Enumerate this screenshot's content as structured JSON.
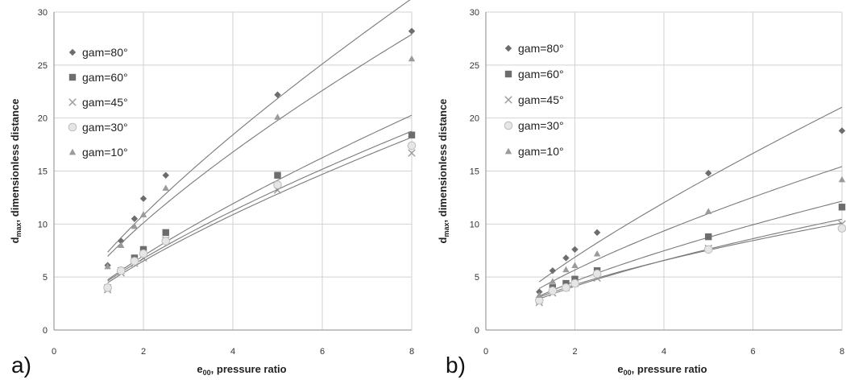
{
  "chart_data": [
    {
      "type": "scatter",
      "panel_label": "a)",
      "xlabel": {
        "main": "e",
        "sub": "00",
        "rest": ", pressure ratio"
      },
      "ylabel": {
        "main": "d",
        "sub": "max",
        "rest": ", dimensionless distance"
      },
      "xlim": [
        0,
        8
      ],
      "ylim": [
        0,
        30
      ],
      "xticks": [
        0,
        2,
        4,
        6,
        8
      ],
      "yticks": [
        0,
        5,
        10,
        15,
        20,
        25,
        30
      ],
      "grid": true,
      "legend_position": "top-left",
      "trendlines": "power fit per series",
      "series": [
        {
          "name": "gam=80°",
          "marker": "diamond",
          "color": "#6d6d6d",
          "x": [
            1.2,
            1.5,
            1.8,
            2,
            2.5,
            5,
            8
          ],
          "y": [
            6.1,
            8.4,
            10.5,
            12.4,
            14.6,
            22.2,
            28.2
          ]
        },
        {
          "name": "gam=60°",
          "marker": "square",
          "color": "#6d6d6d",
          "x": [
            1.2,
            1.5,
            1.8,
            2,
            2.5,
            5,
            8
          ],
          "y": [
            4.0,
            5.6,
            6.8,
            7.6,
            9.2,
            14.6,
            18.4
          ]
        },
        {
          "name": "gam=45°",
          "marker": "x",
          "color": "#9a9a9a",
          "x": [
            1.2,
            1.5,
            1.8,
            2,
            2.5,
            5,
            8
          ],
          "y": [
            3.8,
            5.4,
            6.3,
            6.8,
            8.5,
            13.2,
            16.7
          ]
        },
        {
          "name": "gam=30°",
          "marker": "circle",
          "color": "#bdbdbd",
          "x": [
            1.2,
            1.5,
            1.8,
            2,
            2.5,
            5,
            8
          ],
          "y": [
            4.0,
            5.6,
            6.5,
            7.2,
            8.4,
            13.7,
            17.4
          ]
        },
        {
          "name": "gam=10°",
          "marker": "triangle",
          "color": "#9a9a9a",
          "x": [
            1.2,
            1.5,
            1.8,
            2,
            2.5,
            5,
            8
          ],
          "y": [
            6.0,
            8.0,
            9.8,
            10.9,
            13.4,
            20.1,
            25.6
          ]
        }
      ]
    },
    {
      "type": "scatter",
      "panel_label": "b)",
      "xlabel": {
        "main": "e",
        "sub": "00",
        "rest": ", pressure ratio"
      },
      "ylabel": {
        "main": "d",
        "sub": "max",
        "rest": ", dimensionless distance"
      },
      "xlim": [
        0,
        8
      ],
      "ylim": [
        0,
        30
      ],
      "xticks": [
        0,
        2,
        4,
        6,
        8
      ],
      "yticks": [
        0,
        5,
        10,
        15,
        20,
        25,
        30
      ],
      "grid": true,
      "legend_position": "top-left",
      "trendlines": "power fit per series",
      "series": [
        {
          "name": "gam=80°",
          "marker": "diamond",
          "color": "#6d6d6d",
          "x": [
            1.2,
            1.5,
            1.8,
            2,
            2.5,
            5,
            8
          ],
          "y": [
            3.6,
            5.6,
            6.8,
            7.6,
            9.2,
            14.8,
            18.8
          ]
        },
        {
          "name": "gam=60°",
          "marker": "square",
          "color": "#6d6d6d",
          "x": [
            1.2,
            1.5,
            1.8,
            2,
            2.5,
            5,
            8
          ],
          "y": [
            2.8,
            4.0,
            4.4,
            4.8,
            5.6,
            8.8,
            11.6
          ]
        },
        {
          "name": "gam=45°",
          "marker": "x",
          "color": "#9a9a9a",
          "x": [
            1.2,
            1.5,
            1.8,
            2,
            2.5,
            5,
            8
          ],
          "y": [
            2.6,
            3.5,
            4.0,
            4.4,
            4.9,
            7.7,
            10.0
          ]
        },
        {
          "name": "gam=30°",
          "marker": "circle",
          "color": "#bdbdbd",
          "x": [
            1.2,
            1.5,
            1.8,
            2,
            2.5,
            5,
            8
          ],
          "y": [
            2.8,
            3.7,
            4.0,
            4.4,
            5.3,
            7.6,
            9.6
          ]
        },
        {
          "name": "gam=10°",
          "marker": "triangle",
          "color": "#9a9a9a",
          "x": [
            1.2,
            1.5,
            1.8,
            2,
            2.5,
            5,
            8
          ],
          "y": [
            3.3,
            4.6,
            5.7,
            6.1,
            7.2,
            11.2,
            14.2
          ]
        }
      ]
    }
  ]
}
